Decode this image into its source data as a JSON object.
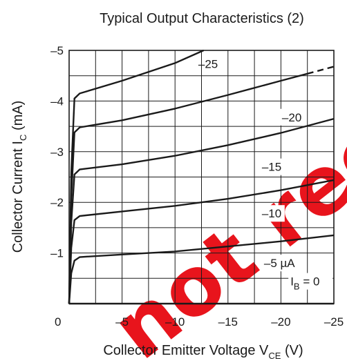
{
  "chart_data": {
    "type": "line",
    "title": "Typical Output Characteristics (2)",
    "xlabel": {
      "main": "Collector Emitter Voltage  V",
      "sub": "CE",
      "unit": "  (V)"
    },
    "ylabel": {
      "main": "Collector Current  I",
      "sub": "C",
      "unit": "  (mA)"
    },
    "xlim": [
      0,
      -25
    ],
    "ylim": [
      0,
      -5
    ],
    "grid": true,
    "x_ticks": [
      "0",
      "–5",
      "–10",
      "–15",
      "–20",
      "–25"
    ],
    "y_ticks": [
      "–1",
      "–2",
      "–3",
      "–4",
      "–5"
    ],
    "series": [
      {
        "name": "I_B = 0",
        "label_main": "I",
        "label_sub": "B",
        "label_rest": " = 0",
        "points": [
          [
            0,
            0
          ],
          [
            -25,
            0
          ]
        ]
      },
      {
        "name": "–5 µA",
        "label_main": "–5 µA",
        "points": [
          [
            0,
            0
          ],
          [
            -0.2,
            -0.6
          ],
          [
            -0.5,
            -0.85
          ],
          [
            -1,
            -0.92
          ],
          [
            -5,
            -0.97
          ],
          [
            -10,
            -1.03
          ],
          [
            -15,
            -1.13
          ],
          [
            -20,
            -1.23
          ],
          [
            -25,
            -1.35
          ]
        ]
      },
      {
        "name": "–10",
        "label_main": "–10",
        "points": [
          [
            0,
            0
          ],
          [
            -0.2,
            -1.1
          ],
          [
            -0.5,
            -1.65
          ],
          [
            -1,
            -1.73
          ],
          [
            -5,
            -1.82
          ],
          [
            -10,
            -1.93
          ],
          [
            -15,
            -2.07
          ],
          [
            -20,
            -2.24
          ],
          [
            -25,
            -2.44
          ]
        ]
      },
      {
        "name": "–15",
        "label_main": "–15",
        "points": [
          [
            0,
            0
          ],
          [
            -0.2,
            -1.6
          ],
          [
            -0.5,
            -2.55
          ],
          [
            -1,
            -2.65
          ],
          [
            -5,
            -2.75
          ],
          [
            -10,
            -2.92
          ],
          [
            -15,
            -3.13
          ],
          [
            -20,
            -3.37
          ],
          [
            -25,
            -3.65
          ]
        ]
      },
      {
        "name": "–20",
        "label_main": "–20",
        "points": [
          [
            0,
            0
          ],
          [
            -0.2,
            -2.1
          ],
          [
            -0.5,
            -3.38
          ],
          [
            -1,
            -3.48
          ],
          [
            -5,
            -3.62
          ],
          [
            -10,
            -3.85
          ],
          [
            -15,
            -4.12
          ],
          [
            -20,
            -4.4
          ],
          [
            -25,
            -4.68
          ]
        ],
        "dashed_from_x": -22.5
      },
      {
        "name": "–25",
        "label_main": "–25",
        "points": [
          [
            0,
            0
          ],
          [
            -0.2,
            -2.6
          ],
          [
            -0.5,
            -4.05
          ],
          [
            -1,
            -4.15
          ],
          [
            -5,
            -4.4
          ],
          [
            -10,
            -4.75
          ],
          [
            -12.7,
            -5
          ]
        ]
      }
    ],
    "watermark": "not recommended"
  }
}
